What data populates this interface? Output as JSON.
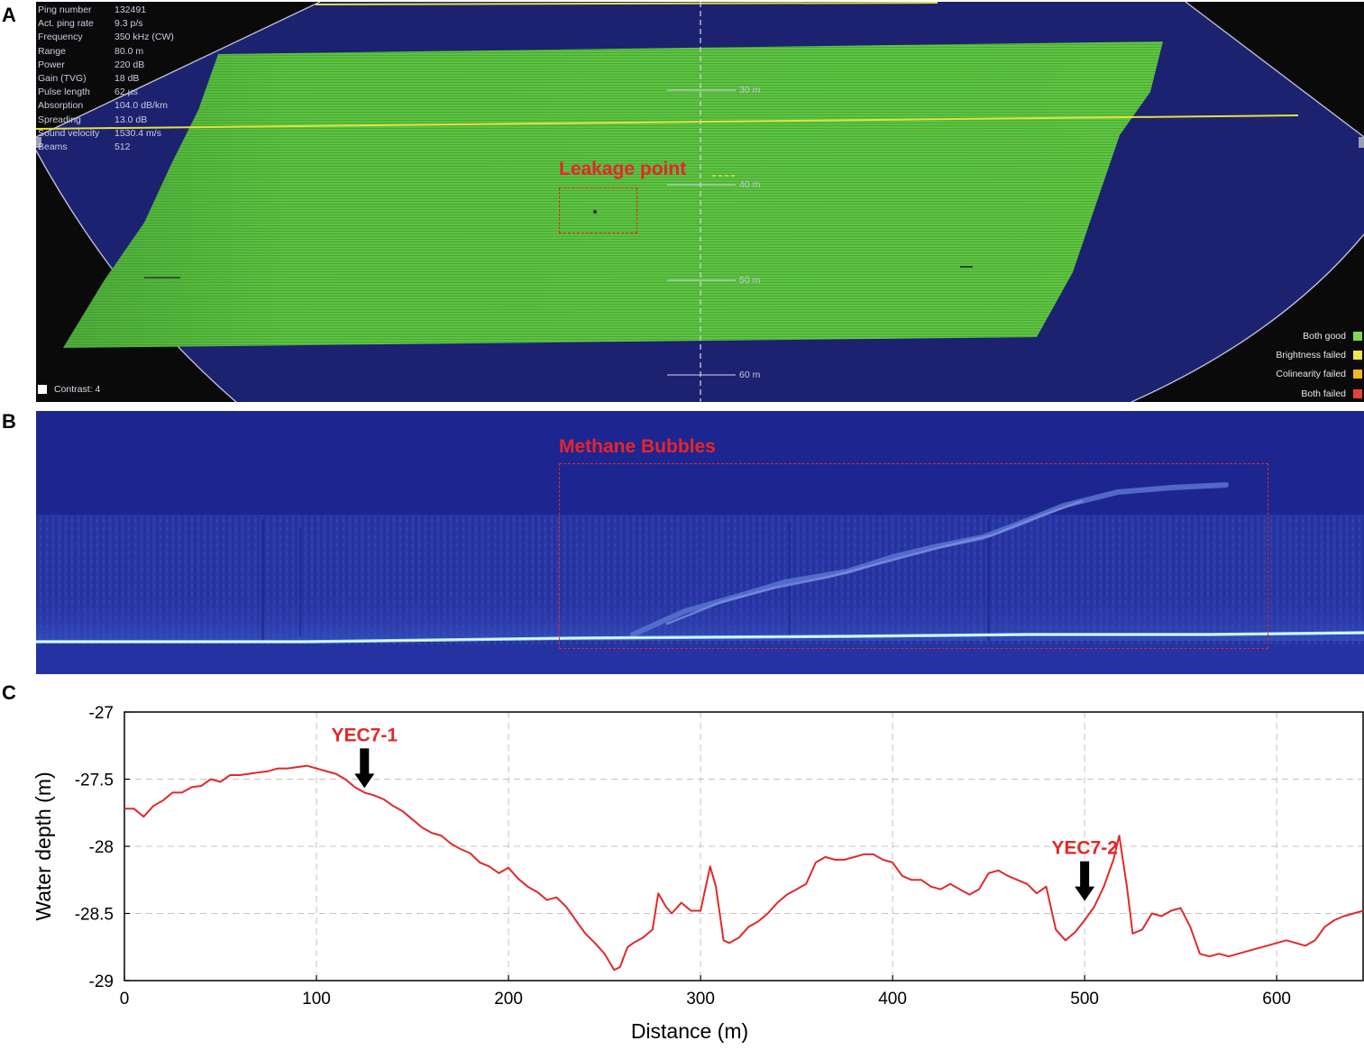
{
  "panel_labels": {
    "a": "A",
    "b": "B",
    "c": "C"
  },
  "panel_a": {
    "info": [
      {
        "label": "Ping number",
        "value": "132491"
      },
      {
        "label": "Act. ping rate",
        "value": "9.3 p/s"
      },
      {
        "label": "Frequency",
        "value": "350 kHz (CW)"
      },
      {
        "label": "Range",
        "value": "80.0 m"
      },
      {
        "label": "Power",
        "value": "220 dB"
      },
      {
        "label": "Gain (TVG)",
        "value": "18 dB"
      },
      {
        "label": "Pulse length",
        "value": "62 µs"
      },
      {
        "label": "Absorption",
        "value": "104.0 dB/km"
      },
      {
        "label": "Spreading",
        "value": "13.0 dB"
      },
      {
        "label": "Sound velocity",
        "value": "1530.4 m/s"
      },
      {
        "label": "Beams",
        "value": "512"
      }
    ],
    "range_marks": [
      "30 m",
      "40 m",
      "50 m",
      "60 m"
    ],
    "annotation": "Leakage point",
    "contrast": "Contrast: 4",
    "legend": [
      {
        "label": "Both good",
        "color": "#7ed957"
      },
      {
        "label": "Brightness failed",
        "color": "#f2e442"
      },
      {
        "label": "Colinearity failed",
        "color": "#f5b71e"
      },
      {
        "label": "Both failed",
        "color": "#e8413a"
      }
    ]
  },
  "panel_b": {
    "annotation": "Methane Bubbles"
  },
  "chart_data": {
    "type": "line",
    "title": "",
    "xlabel": "Distance (m)",
    "ylabel": "Water depth (m)",
    "xlim": [
      0,
      645
    ],
    "ylim": [
      -29,
      -27
    ],
    "xticks": [
      0,
      100,
      200,
      300,
      400,
      500,
      600
    ],
    "yticks": [
      -27,
      -27.5,
      -28,
      -28.5,
      -29
    ],
    "grid": true,
    "line_color": "#e02a2a",
    "series": [
      {
        "x": [
          0,
          5,
          10,
          15,
          20,
          25,
          30,
          35,
          40,
          45,
          50,
          55,
          60,
          65,
          70,
          75,
          80,
          85,
          90,
          95,
          100,
          105,
          110,
          115,
          120,
          125,
          130,
          135,
          140,
          145,
          150,
          155,
          160,
          165,
          170,
          175,
          180,
          185,
          190,
          195,
          200,
          205,
          210,
          215,
          220,
          225,
          230,
          235,
          240,
          245,
          250,
          255,
          258,
          262,
          265,
          270,
          275,
          278,
          282,
          285,
          290,
          295,
          300,
          305,
          308,
          312,
          315,
          320,
          325,
          330,
          335,
          340,
          345,
          350,
          355,
          360,
          365,
          370,
          375,
          380,
          385,
          390,
          395,
          400,
          405,
          410,
          415,
          420,
          425,
          430,
          435,
          440,
          445,
          450,
          455,
          460,
          465,
          470,
          475,
          480,
          485,
          490,
          495,
          500,
          505,
          510,
          515,
          518,
          522,
          525,
          530,
          535,
          540,
          545,
          550,
          555,
          560,
          565,
          570,
          575,
          580,
          585,
          590,
          595,
          600,
          605,
          610,
          615,
          620,
          625,
          630,
          635,
          640,
          645
        ],
        "y": [
          -27.72,
          -27.72,
          -27.78,
          -27.7,
          -27.66,
          -27.6,
          -27.6,
          -27.56,
          -27.55,
          -27.5,
          -27.52,
          -27.47,
          -27.47,
          -27.46,
          -27.45,
          -27.44,
          -27.42,
          -27.42,
          -27.41,
          -27.4,
          -27.42,
          -27.44,
          -27.46,
          -27.5,
          -27.56,
          -27.6,
          -27.62,
          -27.65,
          -27.7,
          -27.74,
          -27.8,
          -27.86,
          -27.9,
          -27.92,
          -27.98,
          -28.02,
          -28.05,
          -28.12,
          -28.15,
          -28.2,
          -28.16,
          -28.24,
          -28.3,
          -28.34,
          -28.4,
          -28.38,
          -28.45,
          -28.55,
          -28.65,
          -28.72,
          -28.8,
          -28.92,
          -28.9,
          -28.75,
          -28.72,
          -28.68,
          -28.62,
          -28.35,
          -28.45,
          -28.5,
          -28.42,
          -28.48,
          -28.48,
          -28.15,
          -28.3,
          -28.7,
          -28.72,
          -28.68,
          -28.6,
          -28.56,
          -28.5,
          -28.42,
          -28.36,
          -28.32,
          -28.28,
          -28.12,
          -28.08,
          -28.1,
          -28.1,
          -28.08,
          -28.06,
          -28.06,
          -28.1,
          -28.12,
          -28.22,
          -28.25,
          -28.25,
          -28.3,
          -28.32,
          -28.28,
          -28.32,
          -28.36,
          -28.32,
          -28.2,
          -28.18,
          -28.22,
          -28.25,
          -28.28,
          -28.35,
          -28.3,
          -28.62,
          -28.7,
          -28.64,
          -28.55,
          -28.45,
          -28.3,
          -28.1,
          -27.92,
          -28.3,
          -28.65,
          -28.62,
          -28.5,
          -28.52,
          -28.48,
          -28.46,
          -28.6,
          -28.8,
          -28.82,
          -28.8,
          -28.82,
          -28.8,
          -28.78,
          -28.76,
          -28.74,
          -28.72,
          -28.7,
          -28.72,
          -28.74,
          -28.7,
          -28.6,
          -28.55,
          -28.52,
          -28.5,
          -28.48
        ]
      }
    ],
    "annotations": [
      {
        "text": "YEC7-1",
        "x": 125,
        "y": -27.58
      },
      {
        "text": "YEC7-2",
        "x": 500,
        "y": -28.42
      }
    ]
  }
}
